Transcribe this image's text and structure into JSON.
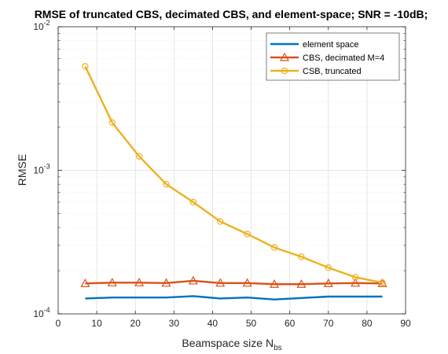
{
  "chart_data": {
    "type": "line",
    "title": "RMSE of truncated CBS, decimated CBS, and element-space; SNR = -10dB;",
    "xlabel_main": "Beamspace size N",
    "xlabel_sub": "bs",
    "ylabel": "RMSE",
    "xlim": [
      0,
      90
    ],
    "ylim": [
      0.0001,
      0.01
    ],
    "yscale": "log",
    "grid": true,
    "minor_grid_y": true,
    "legend_position": "top-right",
    "x_ticks": [
      "0",
      "10",
      "20",
      "30",
      "40",
      "50",
      "60",
      "70",
      "80",
      "90"
    ],
    "y_ticks": [
      {
        "base": "10",
        "exp": "-4"
      },
      {
        "base": "10",
        "exp": "-3"
      },
      {
        "base": "10",
        "exp": "-2"
      }
    ],
    "series": [
      {
        "name": "element space",
        "color": "#0072BD",
        "marker": "none",
        "x": [
          7,
          14,
          21,
          28,
          35,
          42,
          49,
          56,
          63,
          70,
          77,
          84
        ],
        "y": [
          0.000128,
          0.00013,
          0.00013,
          0.00013,
          0.000133,
          0.000128,
          0.00013,
          0.000126,
          0.000129,
          0.000132,
          0.000132,
          0.000132
        ]
      },
      {
        "name": "CBS, decimated M=4",
        "color": "#D95319",
        "marker": "triangle",
        "x": [
          7,
          14,
          21,
          28,
          35,
          42,
          49,
          56,
          63,
          70,
          77,
          84
        ],
        "y": [
          0.000163,
          0.000165,
          0.000165,
          0.000164,
          0.00017,
          0.000164,
          0.000164,
          0.000161,
          0.000161,
          0.000163,
          0.000164,
          0.000163
        ]
      },
      {
        "name": "CSB, truncated",
        "color": "#EDB120",
        "marker": "circle",
        "x": [
          7,
          14,
          21,
          28,
          35,
          42,
          49,
          56,
          63,
          70,
          77,
          84
        ],
        "y": [
          0.0053,
          0.00215,
          0.00125,
          0.0008,
          0.0006,
          0.00044,
          0.00036,
          0.00029,
          0.00025,
          0.00021,
          0.00018,
          0.000165
        ]
      }
    ]
  }
}
